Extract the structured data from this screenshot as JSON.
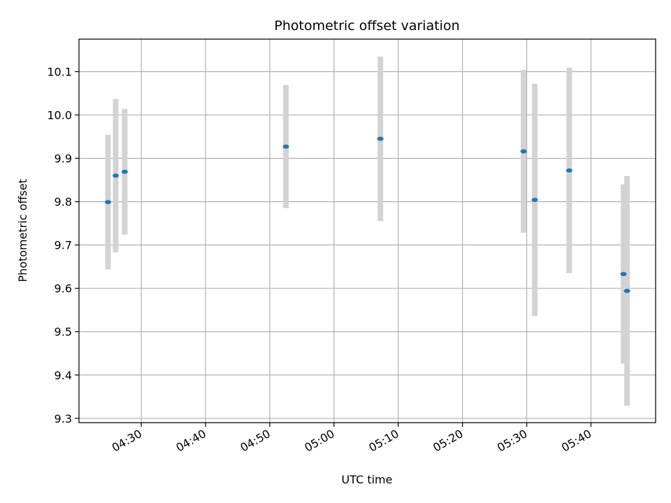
{
  "chart_data": {
    "type": "scatter",
    "title": "Photometric offset variation",
    "xlabel": "UTC time",
    "ylabel": "Photometric offset",
    "xlim": [
      "04:20:18",
      "05:50:04"
    ],
    "ylim": [
      9.29,
      10.175
    ],
    "x_ticks": [
      "04:30",
      "04:40",
      "04:50",
      "05:00",
      "05:10",
      "05:20",
      "05:30",
      "05:40"
    ],
    "y_ticks": [
      9.3,
      9.4,
      9.5,
      9.6,
      9.7,
      9.8,
      9.9,
      10.0,
      10.1
    ],
    "y_tick_labels": [
      "9.3",
      "9.4",
      "9.5",
      "9.6",
      "9.7",
      "9.8",
      "9.9",
      "10.0",
      "10.1"
    ],
    "grid": true,
    "colors": {
      "point": "#1f77b4",
      "errorbar": "#d3d3d3",
      "grid": "#b0b0b0"
    },
    "points": [
      {
        "time": "04:24:49",
        "y": 9.799,
        "err": 0.155
      },
      {
        "time": "04:26:01",
        "y": 9.86,
        "err": 0.177
      },
      {
        "time": "04:27:25",
        "y": 9.869,
        "err": 0.145
      },
      {
        "time": "04:52:31",
        "y": 9.927,
        "err": 0.142
      },
      {
        "time": "05:07:13",
        "y": 9.945,
        "err": 0.19
      },
      {
        "time": "05:29:31",
        "y": 9.916,
        "err": 0.188
      },
      {
        "time": "05:31:15",
        "y": 9.804,
        "err": 0.268
      },
      {
        "time": "05:36:37",
        "y": 9.872,
        "err": 0.237
      },
      {
        "time": "05:45:04",
        "y": 9.633,
        "err": 0.207
      },
      {
        "time": "05:45:37",
        "y": 9.594,
        "err": 0.265
      }
    ]
  }
}
